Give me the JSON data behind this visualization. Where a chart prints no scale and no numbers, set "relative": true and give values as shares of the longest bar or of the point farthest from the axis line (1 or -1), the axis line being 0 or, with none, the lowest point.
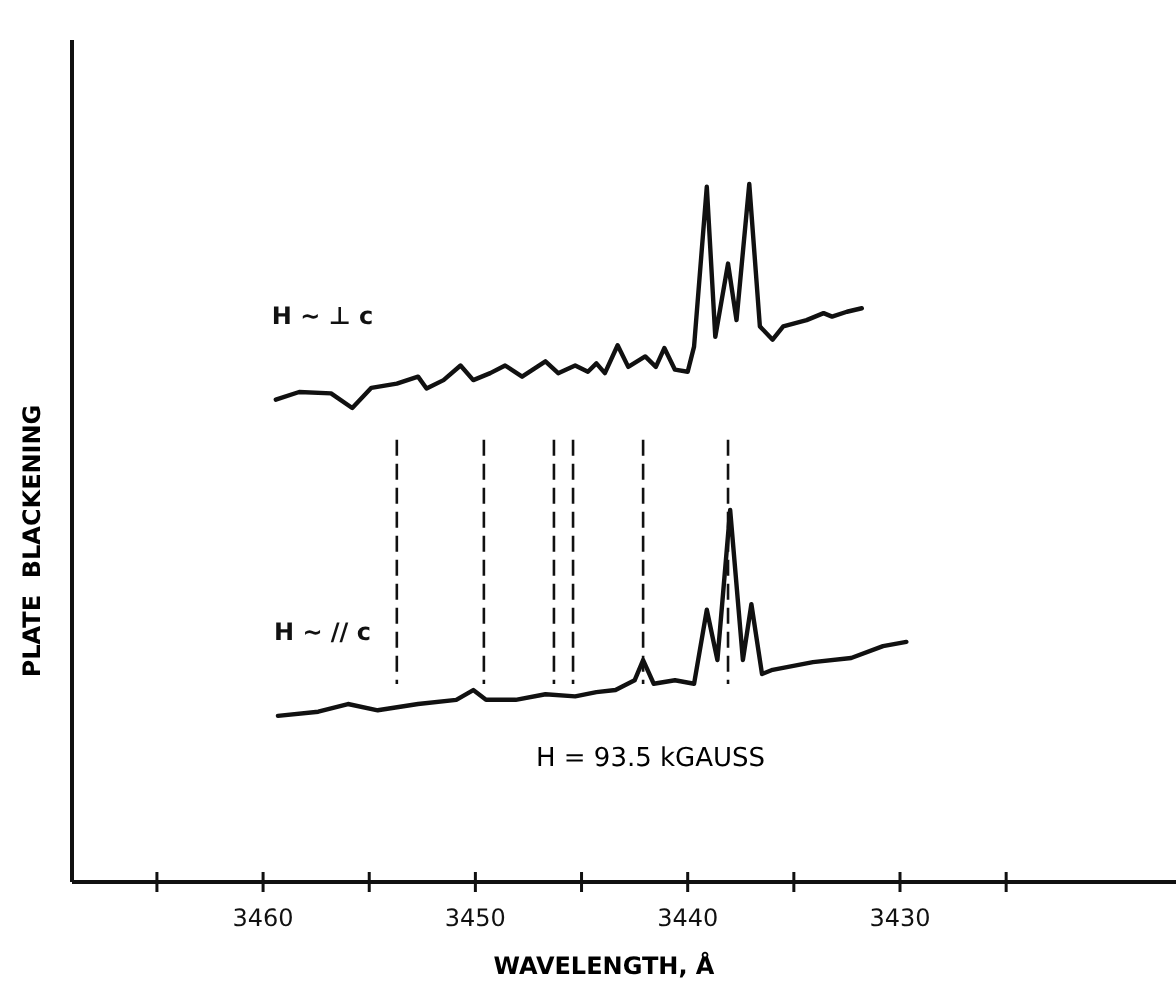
{
  "chart_data": {
    "type": "line",
    "relative": true,
    "xlabel": "WAVELENGTH, Å",
    "ylabel": "PLATE  BLACKENING",
    "xlim": [
      3469,
      3417
    ],
    "xticks": [
      {
        "value": 3465,
        "label": null
      },
      3460,
      {
        "value": 3455,
        "label": null
      },
      3450,
      {
        "value": 3445,
        "label": null
      },
      3440,
      {
        "value": 3435,
        "label": null
      },
      3430,
      {
        "value": 3425,
        "label": null
      }
    ],
    "grid": false,
    "marker": "none",
    "line_style": "solid",
    "series": [
      {
        "name": "H ~ ⊥ c",
        "color": "#111111",
        "x": [
          3459.4,
          3458.3,
          3456.8,
          3455.8,
          3454.9,
          3453.7,
          3452.7,
          3452.3,
          3451.5,
          3450.7,
          3450.1,
          3449.3,
          3448.6,
          3447.8,
          3446.7,
          3446.1,
          3445.3,
          3444.7,
          3444.3,
          3443.9,
          3443.3,
          3442.8,
          3442.0,
          3441.5,
          3441.1,
          3440.6,
          3440.0,
          3439.7,
          3439.1,
          3438.7,
          3438.1,
          3437.7,
          3437.1,
          3436.6,
          3436.0,
          3435.5,
          3434.4,
          3433.6,
          3433.2,
          3432.5,
          3431.8
        ],
        "values": [
          0.691,
          0.702,
          0.7,
          0.679,
          0.708,
          0.714,
          0.724,
          0.707,
          0.719,
          0.74,
          0.719,
          0.729,
          0.74,
          0.724,
          0.746,
          0.729,
          0.74,
          0.731,
          0.743,
          0.729,
          0.769,
          0.738,
          0.753,
          0.738,
          0.765,
          0.734,
          0.731,
          0.767,
          0.996,
          0.781,
          0.886,
          0.805,
          1.0,
          0.796,
          0.777,
          0.796,
          0.805,
          0.815,
          0.81,
          0.817,
          0.822
        ]
      },
      {
        "name": "H ~ // c",
        "color": "#111111",
        "x": [
          3459.3,
          3457.4,
          3456.0,
          3454.6,
          3452.7,
          3450.9,
          3450.1,
          3449.5,
          3448.1,
          3446.7,
          3445.3,
          3444.3,
          3443.4,
          3442.5,
          3442.1,
          3441.6,
          3440.6,
          3439.7,
          3439.1,
          3438.6,
          3438.0,
          3437.4,
          3437.0,
          3436.5,
          3436.0,
          3434.1,
          3432.3,
          3430.8,
          3429.7
        ],
        "values": [
          0.238,
          0.244,
          0.255,
          0.246,
          0.255,
          0.261,
          0.275,
          0.261,
          0.261,
          0.269,
          0.266,
          0.272,
          0.275,
          0.289,
          0.318,
          0.284,
          0.289,
          0.284,
          0.39,
          0.318,
          0.533,
          0.318,
          0.398,
          0.298,
          0.304,
          0.315,
          0.321,
          0.338,
          0.344
        ]
      }
    ],
    "ref_lines": [
      {
        "axis": "x",
        "value": 3453.7,
        "line_style": "dashed"
      },
      {
        "axis": "x",
        "value": 3449.6,
        "line_style": "dashed"
      },
      {
        "axis": "x",
        "value": 3446.3,
        "line_style": "dashed"
      },
      {
        "axis": "x",
        "value": 3445.4,
        "line_style": "dashed"
      },
      {
        "axis": "x",
        "value": 3442.1,
        "line_style": "dashed"
      },
      {
        "axis": "x",
        "value": 3438.1,
        "line_style": "dashed"
      }
    ],
    "annotations": [
      "H = 93.5 kGAUSS"
    ]
  }
}
